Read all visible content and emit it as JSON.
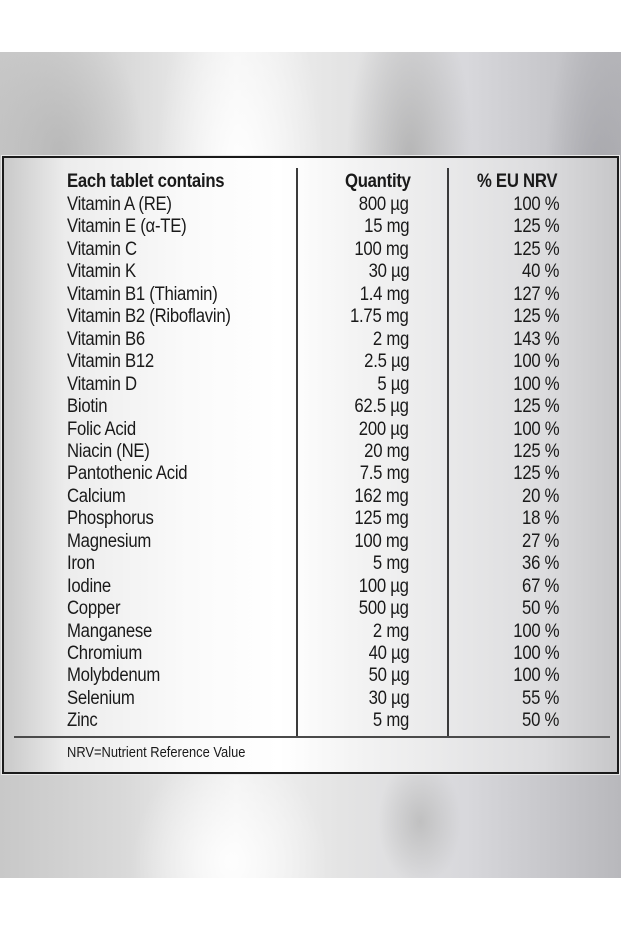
{
  "table": {
    "headers": {
      "nutrient": "Each tablet contains",
      "quantity": "Quantity",
      "nrv": "% EU NRV"
    },
    "rows": [
      {
        "nutrient": "Vitamin A (RE)",
        "quantity": "800 µg",
        "nrv": "100 %"
      },
      {
        "nutrient": "Vitamin E (α-TE)",
        "quantity": "15 mg",
        "nrv": "125 %"
      },
      {
        "nutrient": "Vitamin C",
        "quantity": "100 mg",
        "nrv": "125 %"
      },
      {
        "nutrient": "Vitamin K",
        "quantity": "30 µg",
        "nrv": "40 %"
      },
      {
        "nutrient": "Vitamin B1 (Thiamin)",
        "quantity": "1.4 mg",
        "nrv": "127 %"
      },
      {
        "nutrient": "Vitamin B2 (Riboflavin)",
        "quantity": "1.75 mg",
        "nrv": "125 %"
      },
      {
        "nutrient": "Vitamin B6",
        "quantity": "2 mg",
        "nrv": "143 %"
      },
      {
        "nutrient": "Vitamin B12",
        "quantity": "2.5 µg",
        "nrv": "100 %"
      },
      {
        "nutrient": "Vitamin D",
        "quantity": "5 µg",
        "nrv": "100 %"
      },
      {
        "nutrient": "Biotin",
        "quantity": "62.5 µg",
        "nrv": "125 %"
      },
      {
        "nutrient": "Folic Acid",
        "quantity": "200 µg",
        "nrv": "100 %"
      },
      {
        "nutrient": "Niacin (NE)",
        "quantity": "20 mg",
        "nrv": "125 %"
      },
      {
        "nutrient": "Pantothenic Acid",
        "quantity": "7.5 mg",
        "nrv": "125 %"
      },
      {
        "nutrient": "Calcium",
        "quantity": "162 mg",
        "nrv": "20 %"
      },
      {
        "nutrient": "Phosphorus",
        "quantity": "125 mg",
        "nrv": "18 %"
      },
      {
        "nutrient": "Magnesium",
        "quantity": "100 mg",
        "nrv": "27 %"
      },
      {
        "nutrient": "Iron",
        "quantity": "5 mg",
        "nrv": "36 %"
      },
      {
        "nutrient": "Iodine",
        "quantity": "100 µg",
        "nrv": "67 %"
      },
      {
        "nutrient": "Copper",
        "quantity": "500 µg",
        "nrv": "50 %"
      },
      {
        "nutrient": "Manganese",
        "quantity": "2 mg",
        "nrv": "100 %"
      },
      {
        "nutrient": "Chromium",
        "quantity": "40 µg",
        "nrv": "100 %"
      },
      {
        "nutrient": "Molybdenum",
        "quantity": "50 µg",
        "nrv": "100 %"
      },
      {
        "nutrient": "Selenium",
        "quantity": "30 µg",
        "nrv": "55 %"
      },
      {
        "nutrient": "Zinc",
        "quantity": "5 mg",
        "nrv": "50 %"
      }
    ],
    "footnote": "NRV=Nutrient Reference Value"
  },
  "colors": {
    "text": "#1a1a1a",
    "border": "#1a1a1a",
    "rule": "#3a3a3a",
    "background": "#ffffff"
  }
}
